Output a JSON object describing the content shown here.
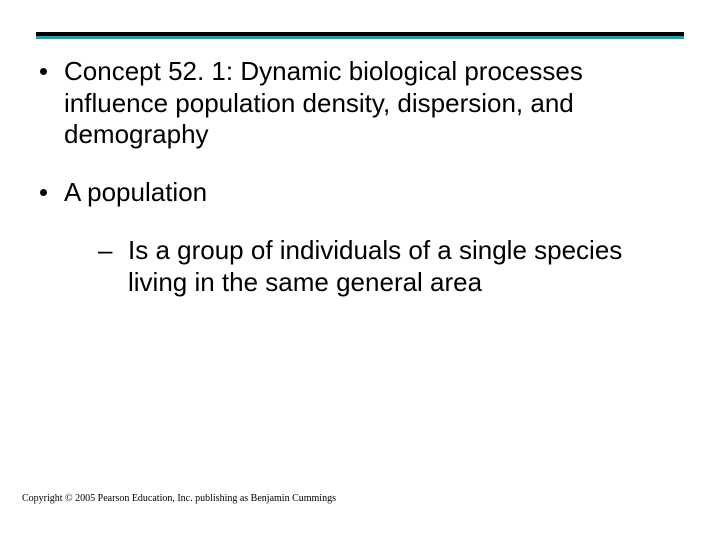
{
  "colors": {
    "top_rule": "#000000",
    "accent_rule": "#339999",
    "bullet": "#000000",
    "text": "#000000",
    "background": "#ffffff"
  },
  "typography": {
    "body_font": "Arial",
    "body_size_pt": 20,
    "footer_font": "Times New Roman",
    "footer_size_pt": 8
  },
  "bullets": [
    {
      "level": 1,
      "text": "Concept 52. 1: Dynamic biological processes influence population density, dispersion, and demography"
    },
    {
      "level": 1,
      "text": "A population"
    },
    {
      "level": 2,
      "text": "Is a group of individuals of a single species living in the same general area"
    }
  ],
  "footer": "Copyright © 2005 Pearson Education, Inc. publishing as Benjamin Cummings"
}
